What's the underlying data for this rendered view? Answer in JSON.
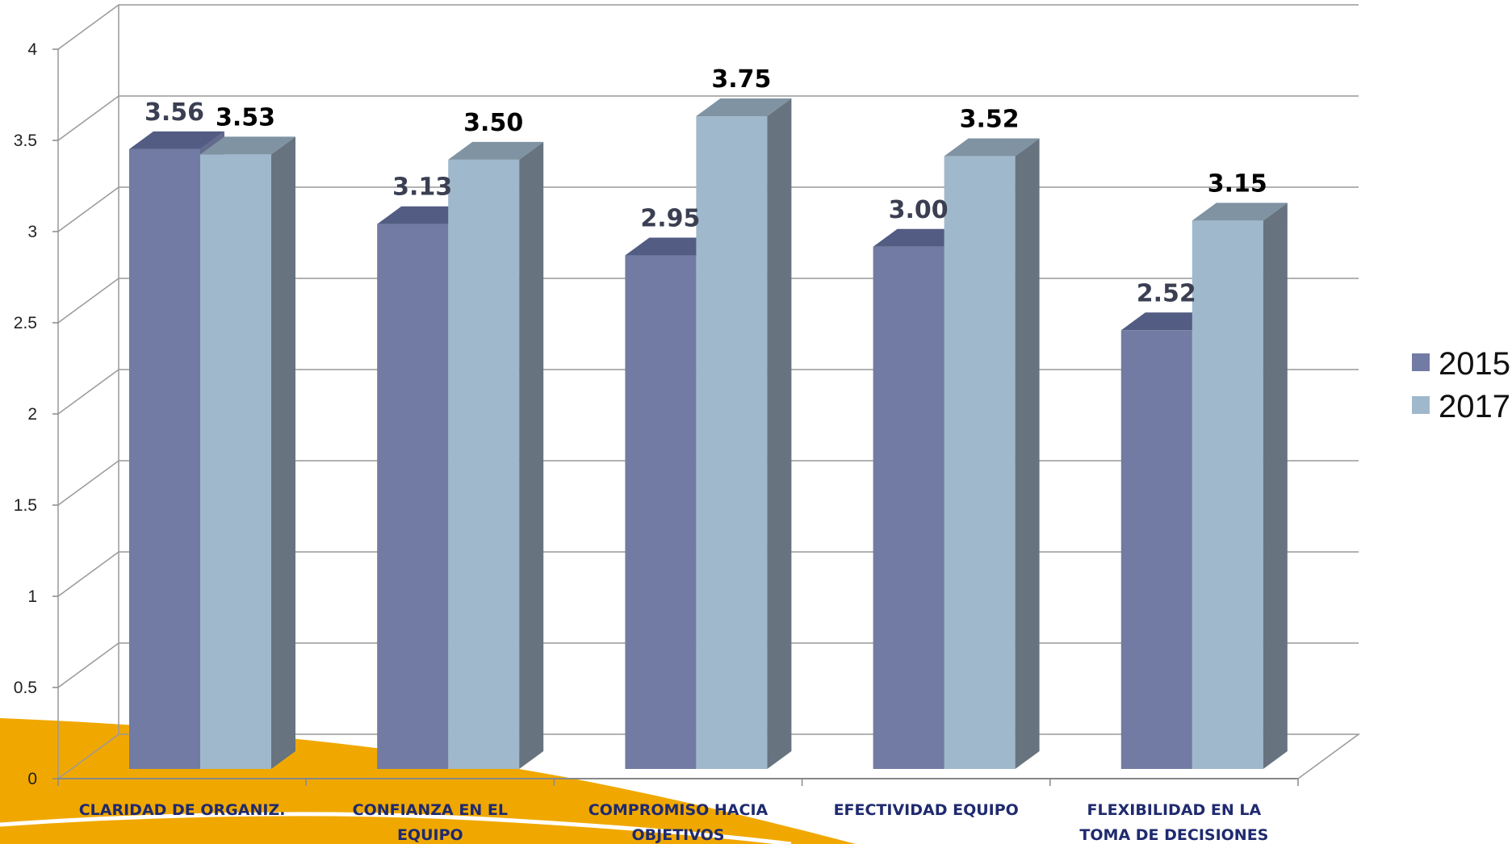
{
  "chart_data": {
    "type": "bar",
    "categories": [
      [
        "CLARIDAD DE ORGANIZ."
      ],
      [
        "CONFIANZA EN EL",
        "EQUIPO"
      ],
      [
        "COMPROMISO HACIA",
        "OBJETIVOS"
      ],
      [
        "EFECTIVIDAD EQUIPO"
      ],
      [
        "FLEXIBILIDAD EN LA",
        "TOMA DE DECISIONES"
      ]
    ],
    "series": [
      {
        "name": "2015",
        "values": [
          3.56,
          3.13,
          2.95,
          3.0,
          2.52
        ],
        "labels": [
          "3.56",
          "3.13",
          "2.95",
          "3.00",
          "2.52"
        ],
        "color": "#717ba3",
        "side": "#636b8c",
        "top": "#535c83",
        "label_color": "#3a3f52"
      },
      {
        "name": "2017",
        "values": [
          3.53,
          3.5,
          3.75,
          3.52,
          3.15
        ],
        "labels": [
          "3.53",
          "3.50",
          "3.75",
          "3.52",
          "3.15"
        ],
        "color": "#a0b8cc",
        "side": "#67747f",
        "top": "#7f93a3",
        "label_color": "#000000"
      }
    ],
    "yticks": [
      "0",
      "0.5",
      "1",
      "1.5",
      "2",
      "2.5",
      "3",
      "3.5",
      "4"
    ],
    "ylim": [
      0,
      4.0
    ],
    "grid": true,
    "legend": "right",
    "title": "",
    "xlabel": "",
    "ylabel": "",
    "decoration_color": "#f0a800"
  }
}
